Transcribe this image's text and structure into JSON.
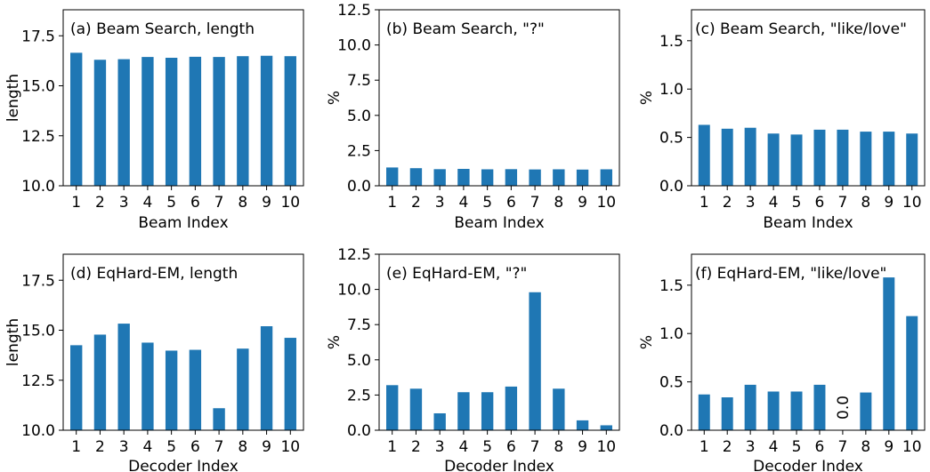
{
  "colors": {
    "bar": "#1f77b4",
    "annotation": "#1f77b4",
    "axis": "#000000",
    "background": "#ffffff"
  },
  "chart_data": [
    {
      "type": "bar",
      "title": "(a) Beam Search, length",
      "xlabel": "Beam Index",
      "ylabel": "length",
      "categories": [
        "1",
        "2",
        "3",
        "4",
        "5",
        "6",
        "7",
        "8",
        "9",
        "10"
      ],
      "values": [
        16.65,
        16.3,
        16.33,
        16.44,
        16.4,
        16.45,
        16.44,
        16.48,
        16.5,
        16.48
      ],
      "ylim": [
        10,
        18.8
      ],
      "yticks": [
        "10.0",
        "12.5",
        "15.0",
        "17.5"
      ],
      "legend": "none",
      "grid": false
    },
    {
      "type": "bar",
      "title": "(b) Beam Search, \"?\"",
      "xlabel": "Beam Index",
      "ylabel": "%",
      "categories": [
        "1",
        "2",
        "3",
        "4",
        "5",
        "6",
        "7",
        "8",
        "9",
        "10"
      ],
      "values": [
        1.3,
        1.25,
        1.18,
        1.2,
        1.17,
        1.18,
        1.16,
        1.17,
        1.15,
        1.17
      ],
      "ylim": [
        0,
        12.5
      ],
      "yticks": [
        "0.0",
        "2.5",
        "5.0",
        "7.5",
        "10.0",
        "12.5"
      ],
      "legend": "none",
      "grid": false
    },
    {
      "type": "bar",
      "title": "(c) Beam Search, \"like/love\"",
      "xlabel": "Beam Index",
      "ylabel": "%",
      "categories": [
        "1",
        "2",
        "3",
        "4",
        "5",
        "6",
        "7",
        "8",
        "9",
        "10"
      ],
      "values": [
        0.63,
        0.59,
        0.6,
        0.54,
        0.53,
        0.58,
        0.58,
        0.56,
        0.56,
        0.54
      ],
      "ylim": [
        0,
        1.82
      ],
      "yticks": [
        "0.0",
        "0.5",
        "1.0",
        "1.5"
      ],
      "legend": "none",
      "grid": false
    },
    {
      "type": "bar",
      "title": "(d) EqHard-EM, length",
      "xlabel": "Decoder Index",
      "ylabel": "length",
      "categories": [
        "1",
        "2",
        "3",
        "4",
        "5",
        "6",
        "7",
        "8",
        "9",
        "10"
      ],
      "values": [
        14.25,
        14.78,
        15.33,
        14.38,
        13.98,
        14.02,
        11.1,
        14.08,
        15.2,
        14.62
      ],
      "ylim": [
        10,
        18.8
      ],
      "yticks": [
        "10.0",
        "12.5",
        "15.0",
        "17.5"
      ],
      "legend": "none",
      "grid": false
    },
    {
      "type": "bar",
      "title": "(e) EqHard-EM, \"?\"",
      "xlabel": "Decoder Index",
      "ylabel": "%",
      "categories": [
        "1",
        "2",
        "3",
        "4",
        "5",
        "6",
        "7",
        "8",
        "9",
        "10"
      ],
      "values": [
        3.2,
        2.95,
        1.2,
        2.7,
        2.7,
        3.1,
        9.8,
        2.95,
        0.7,
        0.35
      ],
      "ylim": [
        0,
        12.5
      ],
      "yticks": [
        "0.0",
        "2.5",
        "5.0",
        "7.5",
        "10.0",
        "12.5"
      ],
      "legend": "none",
      "grid": false
    },
    {
      "type": "bar",
      "title": "(f) EqHard-EM, \"like/love\"",
      "xlabel": "Decoder Index",
      "ylabel": "%",
      "categories": [
        "1",
        "2",
        "3",
        "4",
        "5",
        "6",
        "7",
        "8",
        "9",
        "10"
      ],
      "values": [
        0.37,
        0.34,
        0.47,
        0.4,
        0.4,
        0.47,
        0.0,
        0.39,
        1.58,
        1.18
      ],
      "ylim": [
        0,
        1.82
      ],
      "yticks": [
        "0.0",
        "0.5",
        "1.0",
        "1.5"
      ],
      "legend": "none",
      "grid": false,
      "annotations": [
        {
          "category": "7",
          "text": "0.0"
        }
      ]
    }
  ]
}
